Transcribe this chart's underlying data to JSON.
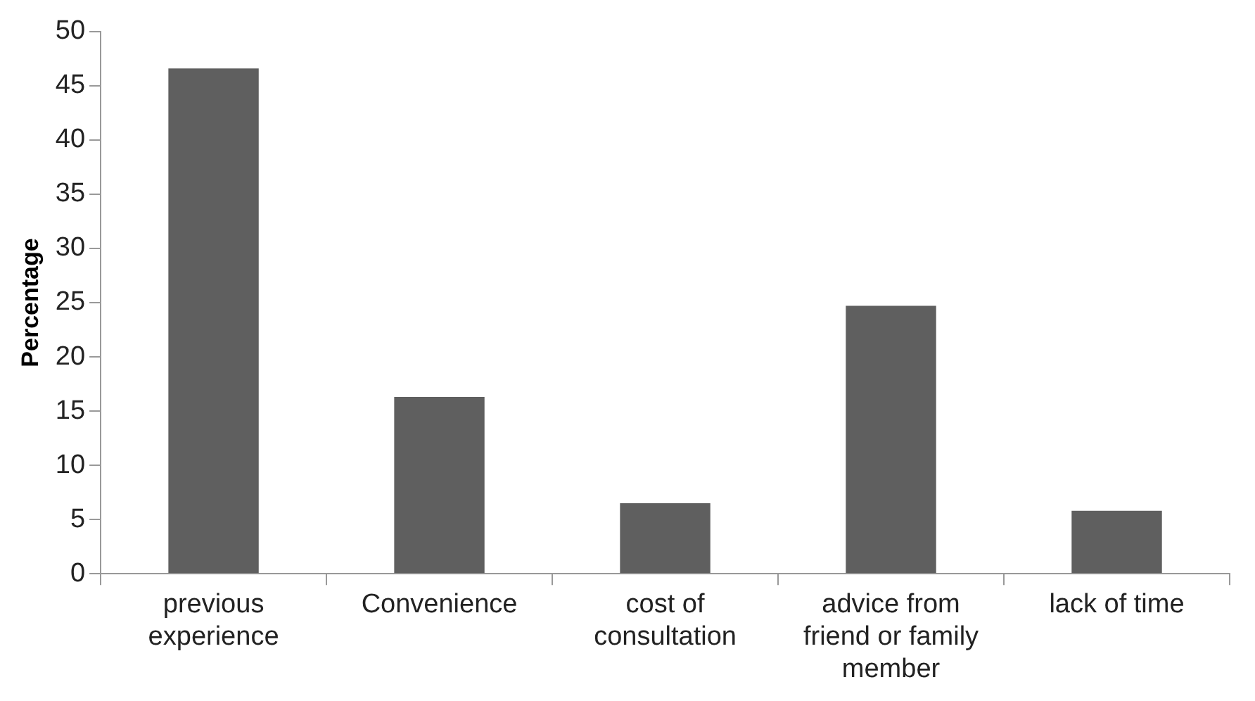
{
  "chart_data": {
    "type": "bar",
    "ylabel": "Percentage",
    "categories": [
      "previous experience",
      "Convenience",
      "cost of consultation",
      "advice from friend or family member",
      "lack of time"
    ],
    "series": [
      {
        "color": "#5f5f5f",
        "values": [
          46.6,
          16.3,
          6.5,
          24.7,
          5.8
        ]
      }
    ],
    "ylim": [
      0,
      50
    ],
    "yticks": [
      0,
      5,
      10,
      15,
      20,
      25,
      30,
      35,
      40,
      45,
      50
    ],
    "grid": false,
    "legend": false
  }
}
